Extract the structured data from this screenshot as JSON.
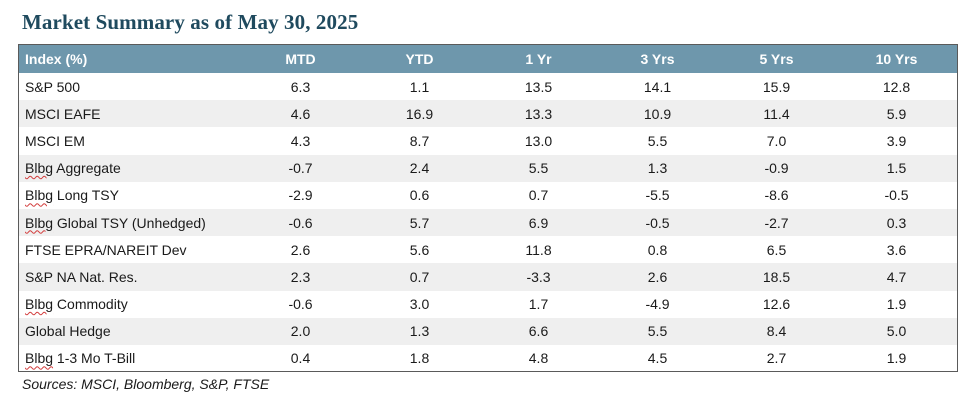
{
  "title": "Market Summary as of May 30, 2025",
  "table": {
    "headers": [
      "Index (%)",
      "MTD",
      "YTD",
      "1 Yr",
      "3 Yrs",
      "5 Yrs",
      "10 Yrs"
    ],
    "rows": [
      {
        "name_prefix": "",
        "name_word": "",
        "name": "S&P 500",
        "values": [
          "6.3",
          "1.1",
          "13.5",
          "14.1",
          "15.9",
          "12.8"
        ]
      },
      {
        "name_prefix": "",
        "name_word": "",
        "name": "MSCI EAFE",
        "values": [
          "4.6",
          "16.9",
          "13.3",
          "10.9",
          "11.4",
          "5.9"
        ]
      },
      {
        "name_prefix": "",
        "name_word": "",
        "name": "MSCI EM",
        "values": [
          "4.3",
          "8.7",
          "13.0",
          "5.5",
          "7.0",
          "3.9"
        ]
      },
      {
        "name_prefix": "Blbg",
        "name_word": " Aggregate",
        "name": "",
        "values": [
          "-0.7",
          "2.4",
          "5.5",
          "1.3",
          "-0.9",
          "1.5"
        ]
      },
      {
        "name_prefix": "Blbg",
        "name_word": " Long TSY",
        "name": "",
        "values": [
          "-2.9",
          "0.6",
          "0.7",
          "-5.5",
          "-8.6",
          "-0.5"
        ]
      },
      {
        "name_prefix": "Blbg",
        "name_word": " Global TSY (Unhedged)",
        "name": "",
        "values": [
          "-0.6",
          "5.7",
          "6.9",
          "-0.5",
          "-2.7",
          "0.3"
        ]
      },
      {
        "name_prefix": "",
        "name_word": "",
        "name": "FTSE EPRA/NAREIT Dev",
        "values": [
          "2.6",
          "5.6",
          "11.8",
          "0.8",
          "6.5",
          "3.6"
        ]
      },
      {
        "name_prefix": "",
        "name_word": "",
        "name": "S&P NA Nat. Res.",
        "values": [
          "2.3",
          "0.7",
          "-3.3",
          "2.6",
          "18.5",
          "4.7"
        ]
      },
      {
        "name_prefix": "Blbg",
        "name_word": " Commodity",
        "name": "",
        "values": [
          "-0.6",
          "3.0",
          "1.7",
          "-4.9",
          "12.6",
          "1.9"
        ]
      },
      {
        "name_prefix": "",
        "name_word": "",
        "name": "Global Hedge",
        "values": [
          "2.0",
          "1.3",
          "6.6",
          "5.5",
          "8.4",
          "5.0"
        ]
      },
      {
        "name_prefix": "Blbg",
        "name_word": " 1-3 Mo T-Bill",
        "name": "",
        "values": [
          "0.4",
          "1.8",
          "4.8",
          "4.5",
          "2.7",
          "1.9"
        ]
      }
    ]
  },
  "sources": "Sources: MSCI, Bloomberg, S&P, FTSE",
  "colors": {
    "title": "#1f4a5e",
    "header_bg": "#6e97ac",
    "stripe": "#efefef"
  }
}
